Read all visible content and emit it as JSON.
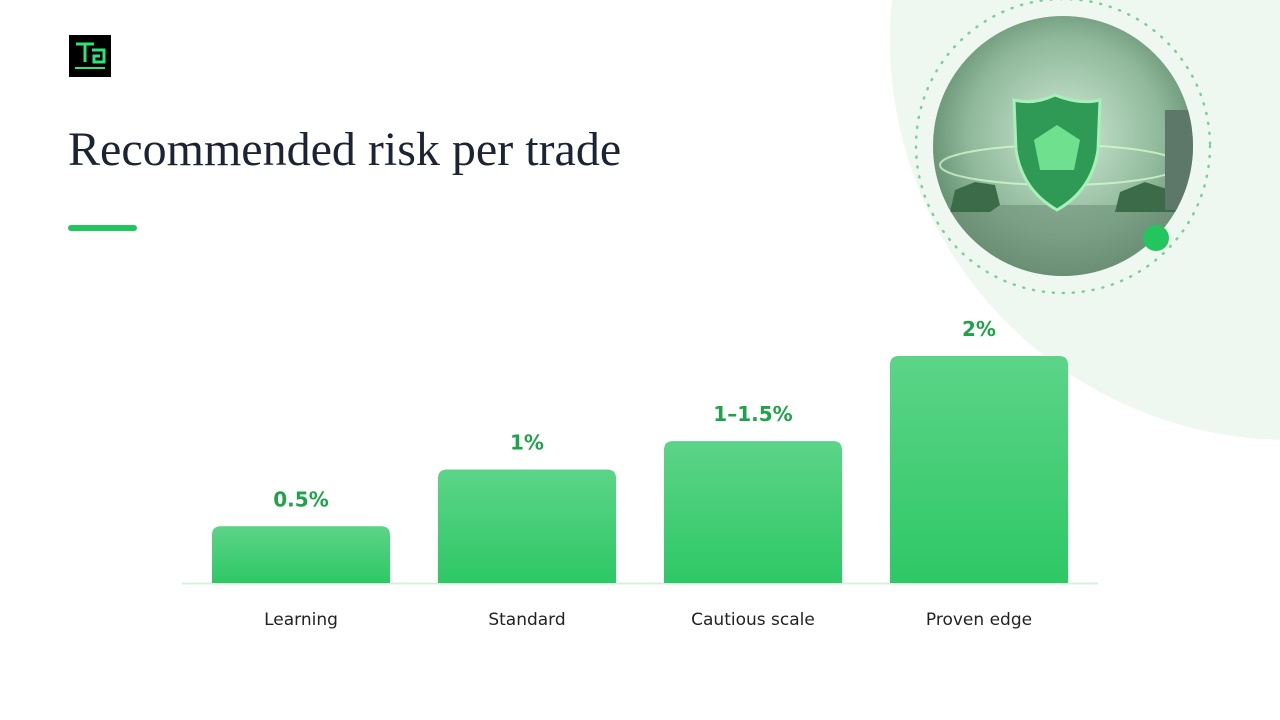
{
  "chart_data": {
    "type": "bar",
    "title": "Recommended risk per trade",
    "categories": [
      "Learning",
      "Standard",
      "Cautious scale",
      "Proven edge"
    ],
    "values": [
      0.5,
      1,
      1.25,
      2
    ],
    "value_labels": [
      "0.5%",
      "1%",
      "1–1.5%",
      "2%"
    ],
    "color": "#2ec866"
  }
}
